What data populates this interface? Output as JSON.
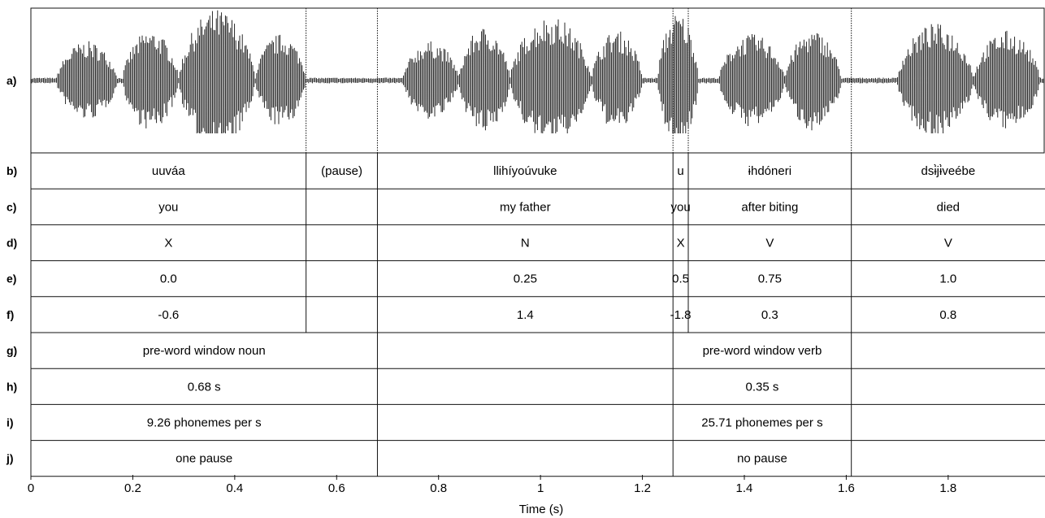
{
  "x_axis": {
    "title": "Time (s)",
    "range": [
      0,
      1.99
    ],
    "ticks": [
      {
        "value": 0,
        "label": "0"
      },
      {
        "value": 0.2,
        "label": "0.2"
      },
      {
        "value": 0.4,
        "label": "0.4"
      },
      {
        "value": 0.6,
        "label": "0.6"
      },
      {
        "value": 0.8,
        "label": "0.8"
      },
      {
        "value": 1.0,
        "label": "1"
      },
      {
        "value": 1.2,
        "label": "1.2"
      },
      {
        "value": 1.4,
        "label": "1.4"
      },
      {
        "value": 1.6,
        "label": "1.6"
      },
      {
        "value": 1.8,
        "label": "1.8"
      }
    ]
  },
  "waveform": {
    "label": "a)",
    "boundaries": [
      0.54,
      0.68,
      1.26,
      1.29,
      1.61
    ],
    "bursts": [
      {
        "start": 0.05,
        "end": 0.17,
        "amp": 0.55
      },
      {
        "start": 0.18,
        "end": 0.29,
        "amp": 0.7
      },
      {
        "start": 0.29,
        "end": 0.44,
        "amp": 1.0
      },
      {
        "start": 0.44,
        "end": 0.54,
        "amp": 0.65
      },
      {
        "start": 0.73,
        "end": 0.84,
        "amp": 0.55
      },
      {
        "start": 0.84,
        "end": 0.94,
        "amp": 0.75
      },
      {
        "start": 0.94,
        "end": 1.1,
        "amp": 0.9
      },
      {
        "start": 1.1,
        "end": 1.2,
        "amp": 0.7
      },
      {
        "start": 1.23,
        "end": 1.31,
        "amp": 0.95
      },
      {
        "start": 1.35,
        "end": 1.48,
        "amp": 0.65
      },
      {
        "start": 1.48,
        "end": 1.59,
        "amp": 0.7
      },
      {
        "start": 1.7,
        "end": 1.85,
        "amp": 0.8
      },
      {
        "start": 1.85,
        "end": 1.98,
        "amp": 0.7
      }
    ]
  },
  "tiers": [
    {
      "label": "b)",
      "cells": [
        {
          "start": 0,
          "end": 0.54,
          "text": "uuváa"
        },
        {
          "start": 0.54,
          "end": 0.68,
          "text": "(pause)"
        },
        {
          "start": 0.68,
          "end": 1.26,
          "text": "llihíyoúvuke"
        },
        {
          "start": 1.26,
          "end": 1.29,
          "text": "u"
        },
        {
          "start": 1.29,
          "end": 1.61,
          "text": "ɨhdóneri"
        },
        {
          "start": 1.61,
          "end": 1.99,
          "text": "dsɨ̀jɨ̀veébe"
        }
      ]
    },
    {
      "label": "c)",
      "cells": [
        {
          "start": 0,
          "end": 0.54,
          "text": "you"
        },
        {
          "start": 0.54,
          "end": 0.68,
          "text": ""
        },
        {
          "start": 0.68,
          "end": 1.26,
          "text": "my father"
        },
        {
          "start": 1.26,
          "end": 1.29,
          "text": "you"
        },
        {
          "start": 1.29,
          "end": 1.61,
          "text": "after biting"
        },
        {
          "start": 1.61,
          "end": 1.99,
          "text": "died"
        }
      ]
    },
    {
      "label": "d)",
      "cells": [
        {
          "start": 0,
          "end": 0.54,
          "text": "X"
        },
        {
          "start": 0.54,
          "end": 0.68,
          "text": ""
        },
        {
          "start": 0.68,
          "end": 1.26,
          "text": "N"
        },
        {
          "start": 1.26,
          "end": 1.29,
          "text": "X"
        },
        {
          "start": 1.29,
          "end": 1.61,
          "text": "V"
        },
        {
          "start": 1.61,
          "end": 1.99,
          "text": "V"
        }
      ]
    },
    {
      "label": "e)",
      "cells": [
        {
          "start": 0,
          "end": 0.54,
          "text": "0.0"
        },
        {
          "start": 0.54,
          "end": 0.68,
          "text": ""
        },
        {
          "start": 0.68,
          "end": 1.26,
          "text": "0.25"
        },
        {
          "start": 1.26,
          "end": 1.29,
          "text": "0.5"
        },
        {
          "start": 1.29,
          "end": 1.61,
          "text": "0.75"
        },
        {
          "start": 1.61,
          "end": 1.99,
          "text": "1.0"
        }
      ]
    },
    {
      "label": "f)",
      "cells": [
        {
          "start": 0,
          "end": 0.54,
          "text": "-0.6"
        },
        {
          "start": 0.54,
          "end": 0.68,
          "text": ""
        },
        {
          "start": 0.68,
          "end": 1.26,
          "text": "1.4"
        },
        {
          "start": 1.26,
          "end": 1.29,
          "text": "-1.8"
        },
        {
          "start": 1.29,
          "end": 1.61,
          "text": "0.3"
        },
        {
          "start": 1.61,
          "end": 1.99,
          "text": "0.8"
        }
      ]
    },
    {
      "label": "g)",
      "cells": [
        {
          "start": 0,
          "end": 0.68,
          "text": "pre-word window noun"
        },
        {
          "start": 0.68,
          "end": 1.26,
          "text": ""
        },
        {
          "start": 1.26,
          "end": 1.61,
          "text": "pre-word window verb"
        },
        {
          "start": 1.61,
          "end": 1.99,
          "text": ""
        }
      ]
    },
    {
      "label": "h)",
      "cells": [
        {
          "start": 0,
          "end": 0.68,
          "text": "0.68 s"
        },
        {
          "start": 0.68,
          "end": 1.26,
          "text": ""
        },
        {
          "start": 1.26,
          "end": 1.61,
          "text": "0.35 s"
        },
        {
          "start": 1.61,
          "end": 1.99,
          "text": ""
        }
      ]
    },
    {
      "label": "i)",
      "cells": [
        {
          "start": 0,
          "end": 0.68,
          "text": "9.26 phonemes per s"
        },
        {
          "start": 0.68,
          "end": 1.26,
          "text": ""
        },
        {
          "start": 1.26,
          "end": 1.61,
          "text": "25.71 phonemes per s"
        },
        {
          "start": 1.61,
          "end": 1.99,
          "text": ""
        }
      ]
    },
    {
      "label": "j)",
      "cells": [
        {
          "start": 0,
          "end": 0.68,
          "text": "one pause"
        },
        {
          "start": 0.68,
          "end": 1.26,
          "text": ""
        },
        {
          "start": 1.26,
          "end": 1.61,
          "text": "no pause"
        },
        {
          "start": 1.61,
          "end": 1.99,
          "text": ""
        }
      ]
    }
  ]
}
